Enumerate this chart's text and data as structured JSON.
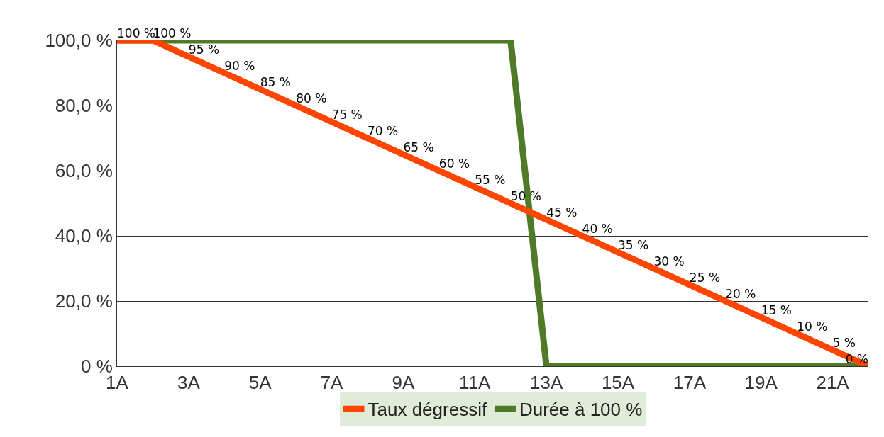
{
  "chart_data": {
    "type": "line",
    "categories": [
      "1A",
      null,
      "3A",
      null,
      "5A",
      null,
      "7A",
      null,
      "9A",
      null,
      "11A",
      null,
      "13A",
      null,
      "15A",
      null,
      "17A",
      null,
      "19A",
      null,
      "21A",
      null
    ],
    "series": [
      {
        "name": "Taux dégressif",
        "color": "#ff4500",
        "values": [
          100,
          100,
          95,
          90,
          85,
          80,
          75,
          70,
          65,
          60,
          55,
          50,
          45,
          40,
          35,
          30,
          25,
          20,
          15,
          10,
          5,
          0
        ],
        "value_labels": [
          "100 %",
          "100 %",
          "95 %",
          "90 %",
          "85 %",
          "80 %",
          "75 %",
          "70 %",
          "65 %",
          "60 %",
          "55 %",
          "50 %",
          "45 %",
          "40 %",
          "35 %",
          "30 %",
          "25 %",
          "20 %",
          "15 %",
          "10 %",
          "5 %",
          "0 %"
        ]
      },
      {
        "name": "Durée à 100 %",
        "color": "#4f7a28",
        "values": [
          100,
          100,
          100,
          100,
          100,
          100,
          100,
          100,
          100,
          100,
          100,
          100,
          0,
          0,
          0,
          0,
          0,
          0,
          0,
          0,
          0,
          0
        ]
      }
    ],
    "ylim": [
      0,
      100
    ],
    "yticks": [
      {
        "value": 0,
        "label": "0 %"
      },
      {
        "value": 20,
        "label": "20,0 %"
      },
      {
        "value": 40,
        "label": "40,0 %"
      },
      {
        "value": 60,
        "label": "60,0 %"
      },
      {
        "value": 80,
        "label": "80,0 %"
      },
      {
        "value": 100,
        "label": "100,0 %"
      }
    ],
    "grid": "y",
    "legend": "bottom",
    "marker": "none",
    "line_style": "solid"
  }
}
